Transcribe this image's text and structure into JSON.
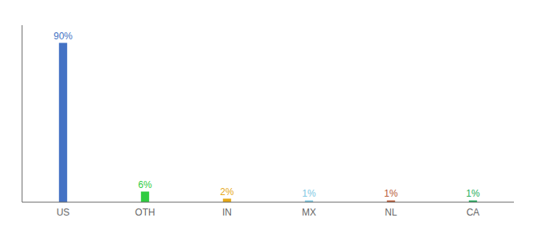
{
  "chart_data": {
    "type": "bar",
    "categories": [
      "US",
      "OTH",
      "IN",
      "MX",
      "NL",
      "CA"
    ],
    "values": [
      90,
      6,
      2,
      1,
      1,
      1
    ],
    "value_labels": [
      "90%",
      "6%",
      "2%",
      "1%",
      "1%",
      "1%"
    ],
    "colors": [
      "#4472c4",
      "#2ecc40",
      "#e6a817",
      "#7ec8e3",
      "#b85c38",
      "#27ae60"
    ],
    "ylim": [
      0,
      100
    ],
    "data_labels": true,
    "tick_labels": "x"
  }
}
